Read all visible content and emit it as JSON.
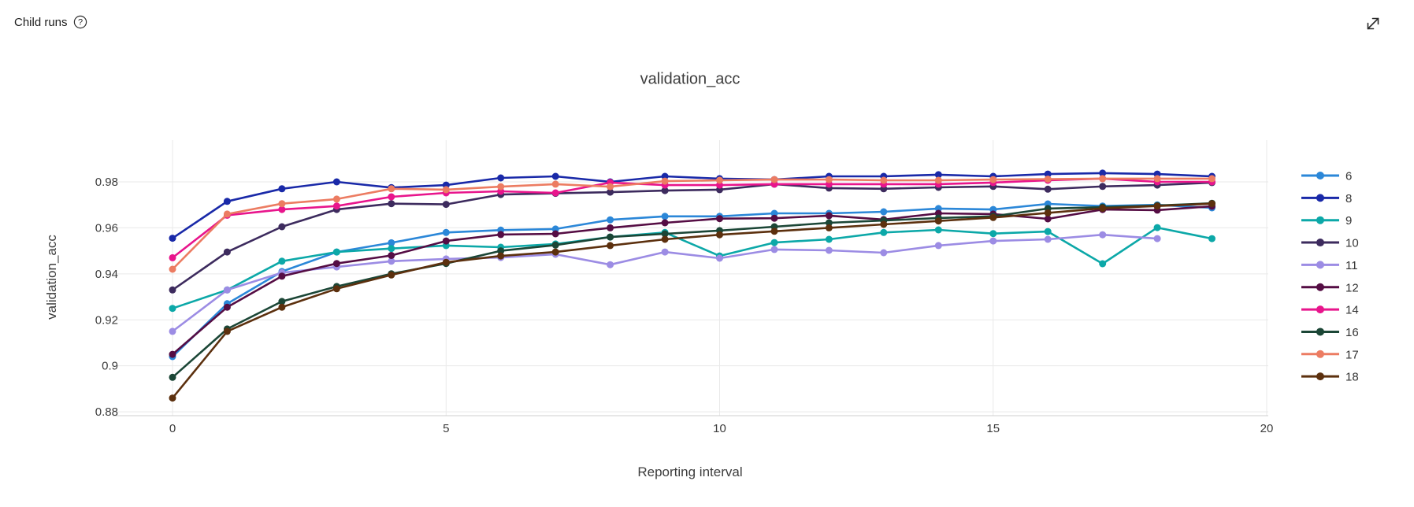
{
  "header": {
    "title": "Child runs"
  },
  "icons": {
    "help": "question-circle-icon",
    "expand": "diagonal-expand-icon"
  },
  "colors": {
    "grid": "#e9e9e9",
    "axis_line": "#cfcfcf",
    "tick_text": "#3c3c3c",
    "title_text": "#3d3d3d"
  },
  "chart_data": {
    "type": "line",
    "title": "validation_acc",
    "xlabel": "Reporting interval",
    "ylabel": "validation_acc",
    "x": [
      0,
      1,
      2,
      3,
      4,
      5,
      6,
      7,
      8,
      9,
      10,
      11,
      12,
      13,
      14,
      15,
      16,
      17,
      18,
      19
    ],
    "xticks": [
      0,
      5,
      10,
      15,
      20
    ],
    "yticks": [
      0.88,
      0.9,
      0.92,
      0.94,
      0.96,
      0.98
    ],
    "xlim": [
      -1.1,
      20.05
    ],
    "ylim": [
      0.878,
      0.998
    ],
    "grid": true,
    "legend_position": "right",
    "marker": "circle",
    "series": [
      {
        "name": "6",
        "color": "#2b87d8",
        "values": [
          0.904,
          0.927,
          0.941,
          0.9495,
          0.9535,
          0.958,
          0.959,
          0.9595,
          0.9635,
          0.965,
          0.965,
          0.9663,
          0.9663,
          0.967,
          0.9684,
          0.968,
          0.9704,
          0.9695,
          0.97,
          0.9687
        ]
      },
      {
        "name": "8",
        "color": "#1929a8",
        "values": [
          0.9555,
          0.9715,
          0.977,
          0.98,
          0.9775,
          0.9786,
          0.9817,
          0.9824,
          0.98,
          0.9824,
          0.9814,
          0.981,
          0.9824,
          0.9824,
          0.9831,
          0.9824,
          0.9834,
          0.9838,
          0.9834,
          0.9824
        ]
      },
      {
        "name": "9",
        "color": "#0ca8a8",
        "values": [
          0.925,
          0.933,
          0.9455,
          0.9495,
          0.951,
          0.9523,
          0.9516,
          0.953,
          0.956,
          0.958,
          0.9478,
          0.9536,
          0.955,
          0.958,
          0.9591,
          0.9575,
          0.9584,
          0.9444,
          0.9601,
          0.9553
        ]
      },
      {
        "name": "10",
        "color": "#3d2b5e",
        "values": [
          0.933,
          0.9495,
          0.9605,
          0.968,
          0.9705,
          0.9702,
          0.9745,
          0.975,
          0.9755,
          0.9762,
          0.9766,
          0.979,
          0.9773,
          0.977,
          0.9776,
          0.978,
          0.9768,
          0.978,
          0.9786,
          0.9797
        ]
      },
      {
        "name": "11",
        "color": "#9c8ce4",
        "values": [
          0.915,
          0.933,
          0.9405,
          0.943,
          0.9455,
          0.9465,
          0.9471,
          0.9485,
          0.944,
          0.9495,
          0.9468,
          0.9506,
          0.9502,
          0.9492,
          0.9523,
          0.9543,
          0.955,
          0.957,
          0.9553
        ]
      },
      {
        "name": "12",
        "color": "#550d44",
        "values": [
          0.905,
          0.9255,
          0.939,
          0.9445,
          0.948,
          0.9543,
          0.9571,
          0.9574,
          0.96,
          0.9622,
          0.964,
          0.9642,
          0.9653,
          0.9636,
          0.9663,
          0.966,
          0.9639,
          0.968,
          0.9677,
          0.9694
        ]
      },
      {
        "name": "14",
        "color": "#e8158c",
        "values": [
          0.947,
          0.9655,
          0.968,
          0.9695,
          0.9735,
          0.9752,
          0.9759,
          0.9752,
          0.9797,
          0.9786,
          0.9786,
          0.979,
          0.979,
          0.979,
          0.979,
          0.9797,
          0.9807,
          0.9814,
          0.98,
          0.98
        ]
      },
      {
        "name": "16",
        "color": "#1b4636",
        "values": [
          0.895,
          0.916,
          0.928,
          0.9345,
          0.94,
          0.9445,
          0.95,
          0.9525,
          0.956,
          0.9574,
          0.9588,
          0.9605,
          0.9622,
          0.9632,
          0.9643,
          0.965,
          0.9684,
          0.969,
          0.9697,
          0.9707
        ]
      },
      {
        "name": "17",
        "color": "#ec7c62",
        "values": [
          0.942,
          0.966,
          0.9705,
          0.9725,
          0.977,
          0.9766,
          0.9779,
          0.979,
          0.9779,
          0.9803,
          0.9807,
          0.981,
          0.981,
          0.9807,
          0.9807,
          0.981,
          0.9812,
          0.9814,
          0.9814,
          0.9814
        ]
      },
      {
        "name": "18",
        "color": "#5c300e",
        "values": [
          0.886,
          0.915,
          0.9255,
          0.9335,
          0.9395,
          0.945,
          0.9478,
          0.9495,
          0.9523,
          0.955,
          0.957,
          0.9585,
          0.96,
          0.9615,
          0.963,
          0.9645,
          0.9665,
          0.9685,
          0.9695,
          0.9705
        ]
      }
    ]
  }
}
